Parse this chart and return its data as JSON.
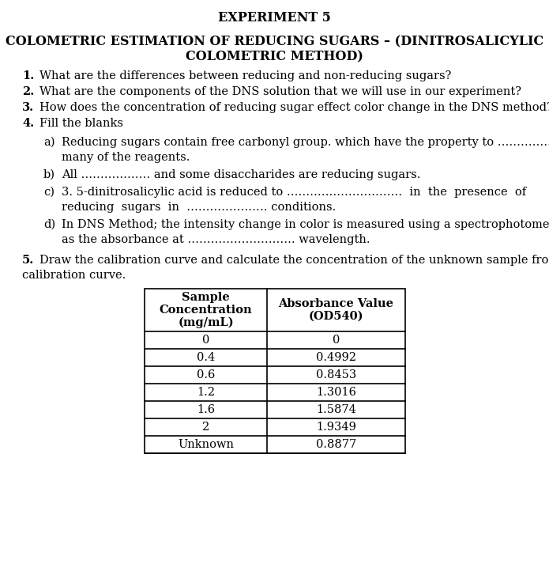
{
  "title": "EXPERIMENT 5",
  "subtitle_line1": "COLOMETRIC ESTIMATION OF REDUCING SUGARS – (DINITROSALICYLIC",
  "subtitle_line2": "COLOMETRIC METHOD)",
  "q1": "What are the differences between reducing and non-reducing sugars?",
  "q2": "What are the components of the DNS solution that we will use in our experiment?",
  "q3": "How does the concentration of reducing sugar effect color change in the DNS method?",
  "q4": "Fill the blanks",
  "a_line1": "Reducing sugars contain free carbonyl group. which have the property to ………………",
  "a_line2": "many of the reagents.",
  "b_line": "All ……………… and some disaccharides are reducing sugars.",
  "c_line1": "3. 5-dinitrosalicylic acid is reduced to …………………………  in  the  presence  of",
  "c_line2": "reducing  sugars  in  ………………… conditions.",
  "d_line1": "In DNS Method; the intensity change in color is measured using a spectrophotometer",
  "d_line2": "as the absorbance at ………………………. wavelength.",
  "q5_line1": "Draw the calibration curve and calculate the concentration of the unknown sample from the",
  "q5_line2": "calibration curve.",
  "table_header1": "Sample\nConcentration\n(mg/mL)",
  "table_header2": "Absorbance Value\n(OD540)",
  "table_data": [
    [
      "0",
      "0"
    ],
    [
      "0.4",
      "0.4992"
    ],
    [
      "0.6",
      "0.8453"
    ],
    [
      "1.2",
      "1.3016"
    ],
    [
      "1.6",
      "1.5874"
    ],
    [
      "2",
      "1.9349"
    ],
    [
      "Unknown",
      "0.8877"
    ]
  ],
  "bg_color": "#ffffff",
  "text_color": "#000000",
  "fs": 10.5,
  "fs_title": 11.5
}
